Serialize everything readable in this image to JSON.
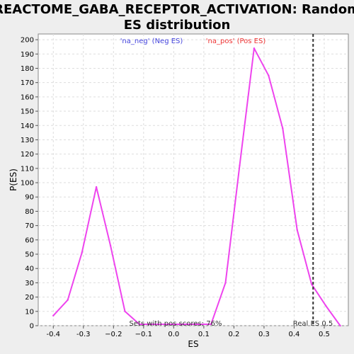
{
  "chart_data": {
    "type": "line",
    "title_lines": [
      "REACTOME_GABA_RECEPTOR_ACTIVATION: Random",
      "ES distribution"
    ],
    "xlabel": "ES",
    "ylabel": "P(ES)",
    "xlim": [
      -0.45,
      0.58
    ],
    "ylim": [
      0,
      204
    ],
    "x_ticks": [
      -0.4,
      -0.3,
      -0.2,
      -0.1,
      0.0,
      0.1,
      0.2,
      0.3,
      0.4,
      0.5
    ],
    "x_tick_labels": [
      "-0.4",
      "-0.3",
      "−0.2",
      "−0.1",
      "0.0",
      "0.1",
      "0.2",
      "0.3",
      "0.4",
      "0.5"
    ],
    "y_ticks": [
      0,
      10,
      20,
      30,
      40,
      50,
      60,
      70,
      80,
      90,
      100,
      110,
      120,
      130,
      140,
      150,
      160,
      170,
      180,
      190,
      200
    ],
    "grid": true,
    "series": [
      {
        "color": "#ee44ee",
        "x": [
          -0.4,
          -0.352,
          -0.305,
          -0.257,
          -0.21,
          -0.162,
          -0.114,
          -0.067,
          -0.019,
          0.029,
          0.076,
          0.124,
          0.172,
          0.219,
          0.267,
          0.315,
          0.362,
          0.41,
          0.458,
          0.505,
          0.553
        ],
        "y": [
          7,
          18,
          51,
          97,
          56,
          10,
          1,
          1,
          1,
          1,
          1,
          1,
          30,
          112,
          194,
          175,
          138,
          67,
          29,
          14,
          0
        ]
      }
    ],
    "legend": [
      {
        "label": "'na_neg' (Neg ES)",
        "color": "#4444dd"
      },
      {
        "label": "'na_pos' (Pos ES)",
        "color": "#ee3333"
      }
    ],
    "real_es": {
      "x": 0.463,
      "label": "Real ES 0.5"
    },
    "annotation": "Sets with pos scores: 76%"
  }
}
